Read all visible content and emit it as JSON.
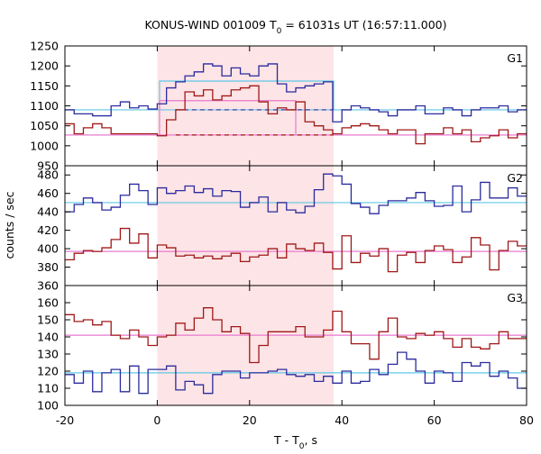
{
  "chart_data": {
    "type": "line",
    "title": "KONUS-WIND 001009 T",
    "title_sub": "0",
    "title_rest": " = 61031s UT (16:57:11.000)",
    "xlabel_main": "T - T",
    "xlabel_sub": "0",
    "xlabel_rest": ", s",
    "ylabel": "counts / sec",
    "xlim": [
      -20,
      80
    ],
    "x_ticks": [
      -20,
      0,
      20,
      40,
      60,
      80
    ],
    "highlight_interval": [
      0,
      38.2
    ],
    "colors": {
      "high_band": "#2b2b9e",
      "low_band": "#a01818",
      "high_fit": "#5ec8e6",
      "low_fit": "#e87ad0",
      "highlight": "#fde4e6"
    },
    "panels": [
      {
        "label": "G1",
        "ylim": [
          950,
          1250
        ],
        "y_ticks": [
          950,
          1000,
          1050,
          1100,
          1150,
          1200,
          1250
        ],
        "series": [
          {
            "role": "high",
            "edges": [
              -20,
              -18,
              -16,
              -14,
              -12,
              -10,
              -8,
              -6,
              -4,
              -2,
              0,
              2,
              4,
              6,
              8,
              10,
              12,
              14,
              16,
              18,
              20,
              22,
              24,
              26,
              28,
              30,
              32,
              34,
              36,
              38,
              40,
              42,
              44,
              46,
              48,
              50,
              52,
              54,
              56,
              58,
              60,
              62,
              64,
              66,
              68,
              70,
              72,
              74,
              76,
              78,
              80
            ],
            "values": [
              1090,
              1080,
              1080,
              1075,
              1075,
              1100,
              1110,
              1095,
              1100,
              1092,
              1105,
              1145,
              1160,
              1175,
              1185,
              1205,
              1200,
              1175,
              1195,
              1180,
              1175,
              1200,
              1205,
              1155,
              1135,
              1145,
              1150,
              1155,
              1160,
              1060,
              1090,
              1100,
              1095,
              1090,
              1085,
              1075,
              1090,
              1090,
              1100,
              1080,
              1080,
              1095,
              1090,
              1075,
              1090,
              1095,
              1095,
              1100,
              1085,
              1090
            ]
          },
          {
            "role": "low",
            "edges": [
              -20,
              -18,
              -16,
              -14,
              -12,
              -10,
              -8,
              -6,
              -4,
              -2,
              0,
              2,
              4,
              6,
              8,
              10,
              12,
              14,
              16,
              18,
              20,
              22,
              24,
              26,
              28,
              30,
              32,
              34,
              36,
              38,
              40,
              42,
              44,
              46,
              48,
              50,
              52,
              54,
              56,
              58,
              60,
              62,
              64,
              66,
              68,
              70,
              72,
              74,
              76,
              78,
              80
            ],
            "values": [
              1055,
              1030,
              1045,
              1055,
              1045,
              1030,
              1030,
              1030,
              1030,
              1030,
              1025,
              1065,
              1090,
              1135,
              1125,
              1140,
              1115,
              1125,
              1140,
              1145,
              1150,
              1110,
              1080,
              1095,
              1090,
              1110,
              1060,
              1050,
              1040,
              1030,
              1045,
              1050,
              1055,
              1050,
              1040,
              1030,
              1040,
              1040,
              1005,
              1030,
              1030,
              1045,
              1030,
              1040,
              1010,
              1020,
              1025,
              1040,
              1020,
              1030
            ]
          }
        ],
        "fits": [
          {
            "role": "high",
            "level": 1090
          },
          {
            "role": "low",
            "level": 1027
          }
        ],
        "signal_boxes": [
          {
            "role": "high",
            "x0": 0.5,
            "x1": 38.2,
            "top": 1162,
            "base": 1090
          },
          {
            "role": "low",
            "x0": 0.5,
            "x1": 30,
            "top": 1113,
            "base": 1027
          }
        ]
      },
      {
        "label": "G2",
        "ylim": [
          360,
          490
        ],
        "y_ticks": [
          360,
          380,
          400,
          420,
          440,
          460,
          480
        ],
        "series": [
          {
            "role": "high",
            "edges": [
              -20,
              -18,
              -16,
              -14,
              -12,
              -10,
              -8,
              -6,
              -4,
              -2,
              0,
              2,
              4,
              6,
              8,
              10,
              12,
              14,
              16,
              18,
              20,
              22,
              24,
              26,
              28,
              30,
              32,
              34,
              36,
              38,
              40,
              42,
              44,
              46,
              48,
              50,
              52,
              54,
              56,
              58,
              60,
              62,
              64,
              66,
              68,
              70,
              72,
              74,
              76,
              78,
              80
            ],
            "values": [
              440,
              448,
              455,
              450,
              442,
              445,
              458,
              470,
              463,
              448,
              466,
              460,
              463,
              468,
              461,
              465,
              457,
              463,
              462,
              445,
              450,
              456,
              440,
              450,
              442,
              439,
              446,
              464,
              481,
              479,
              470,
              449,
              445,
              438,
              447,
              452,
              452,
              455,
              461,
              452,
              446,
              447,
              468,
              440,
              453,
              472,
              455,
              455,
              466,
              457
            ]
          },
          {
            "role": "low",
            "edges": [
              -20,
              -18,
              -16,
              -14,
              -12,
              -10,
              -8,
              -6,
              -4,
              -2,
              0,
              2,
              4,
              6,
              8,
              10,
              12,
              14,
              16,
              18,
              20,
              22,
              24,
              26,
              28,
              30,
              32,
              34,
              36,
              38,
              40,
              42,
              44,
              46,
              48,
              50,
              52,
              54,
              56,
              58,
              60,
              62,
              64,
              66,
              68,
              70,
              72,
              74,
              76,
              78,
              80
            ],
            "values": [
              388,
              395,
              398,
              397,
              401,
              410,
              422,
              406,
              416,
              390,
              404,
              401,
              392,
              393,
              390,
              392,
              389,
              392,
              395,
              386,
              391,
              393,
              400,
              390,
              405,
              400,
              398,
              406,
              396,
              378,
              414,
              385,
              395,
              392,
              400,
              375,
              393,
              396,
              385,
              398,
              403,
              399,
              385,
              391,
              412,
              404,
              377,
              398,
              408,
              403
            ]
          }
        ],
        "fits": [
          {
            "role": "high",
            "level": 450
          },
          {
            "role": "low",
            "level": 397
          }
        ],
        "signal_boxes": []
      },
      {
        "label": "G3",
        "ylim": [
          100,
          170
        ],
        "y_ticks": [
          100,
          110,
          120,
          130,
          140,
          150,
          160
        ],
        "series": [
          {
            "role": "high",
            "edges": [
              -20,
              -18,
              -16,
              -14,
              -12,
              -10,
              -8,
              -6,
              -4,
              -2,
              0,
              2,
              4,
              6,
              8,
              10,
              12,
              14,
              16,
              18,
              20,
              22,
              24,
              26,
              28,
              30,
              32,
              34,
              36,
              38,
              40,
              42,
              44,
              46,
              48,
              50,
              52,
              54,
              56,
              58,
              60,
              62,
              64,
              66,
              68,
              70,
              72,
              74,
              76,
              78,
              80
            ],
            "values": [
              118,
              113,
              120,
              108,
              119,
              121,
              108,
              123,
              107,
              121,
              121,
              123,
              109,
              114,
              112,
              107,
              118,
              120,
              120,
              116,
              119,
              119,
              120,
              121,
              118,
              117,
              118,
              114,
              117,
              113,
              120,
              113,
              114,
              121,
              118,
              124,
              131,
              127,
              120,
              113,
              120,
              119,
              114,
              125,
              123,
              125,
              117,
              120,
              116,
              110
            ]
          },
          {
            "role": "low",
            "edges": [
              -20,
              -18,
              -16,
              -14,
              -12,
              -10,
              -8,
              -6,
              -4,
              -2,
              0,
              2,
              4,
              6,
              8,
              10,
              12,
              14,
              16,
              18,
              20,
              22,
              24,
              26,
              28,
              30,
              32,
              34,
              36,
              38,
              40,
              42,
              44,
              46,
              48,
              50,
              52,
              54,
              56,
              58,
              60,
              62,
              64,
              66,
              68,
              70,
              72,
              74,
              76,
              78,
              80
            ],
            "values": [
              153,
              149,
              150,
              147,
              149,
              141,
              139,
              144,
              140,
              135,
              140,
              141,
              148,
              144,
              151,
              157,
              150,
              143,
              146,
              142,
              125,
              135,
              143,
              143,
              143,
              146,
              140,
              140,
              144,
              155,
              143,
              136,
              136,
              127,
              143,
              151,
              140,
              139,
              142,
              141,
              143,
              139,
              134,
              139,
              134,
              133,
              136,
              143,
              139,
              139
            ]
          }
        ],
        "fits": [
          {
            "role": "high",
            "level": 119
          },
          {
            "role": "low",
            "level": 141
          }
        ],
        "signal_boxes": []
      }
    ]
  }
}
